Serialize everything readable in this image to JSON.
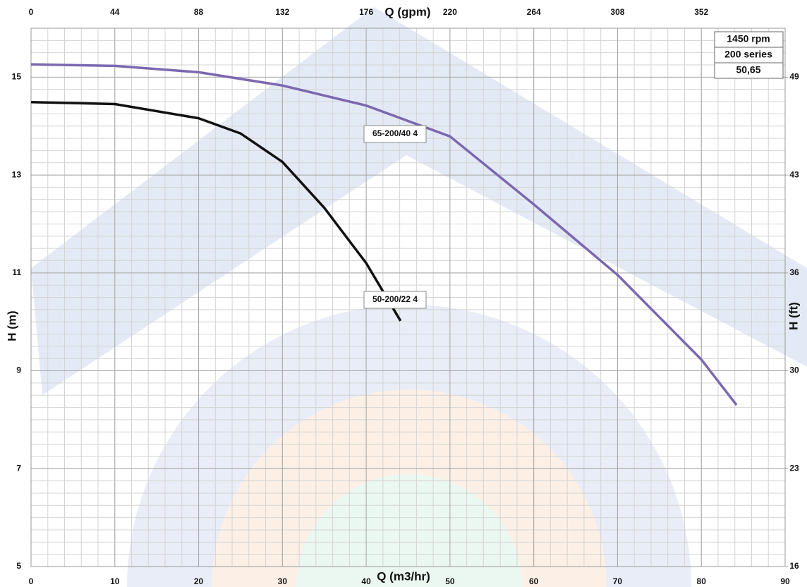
{
  "chart_data": {
    "type": "line",
    "x_label": "Q (m3/hr)",
    "x2_label": "Q (gpm)",
    "y_label": "H (m)",
    "y2_label": "H (ft)",
    "xlim": [
      0,
      90
    ],
    "xticks": [
      0,
      10,
      20,
      30,
      40,
      50,
      60,
      70,
      80,
      90
    ],
    "x2lim": [
      0,
      396
    ],
    "x2ticks": [
      0,
      44,
      88,
      132,
      176,
      220,
      264,
      308,
      352
    ],
    "ylim": [
      5,
      16
    ],
    "yticks": [
      5,
      7,
      9,
      11,
      13,
      15
    ],
    "y2lim": [
      16.4,
      52.5
    ],
    "y2ticks": [
      {
        "value": 16.4,
        "label": "16"
      },
      {
        "value": 22.97,
        "label": "23"
      },
      {
        "value": 29.53,
        "label": "30"
      },
      {
        "value": 36.09,
        "label": "36"
      },
      {
        "value": 42.65,
        "label": "43"
      },
      {
        "value": 49.21,
        "label": "49"
      }
    ],
    "grid": true,
    "minor_grid_step": {
      "x": 2,
      "y": 0.25
    },
    "annotations": [
      "1450 rpm",
      "200 series",
      "50,65"
    ],
    "series": [
      {
        "name": "50-200/22 4",
        "color": "#111111",
        "x": [
          0,
          10,
          20,
          25,
          30,
          35,
          40,
          44.1
        ],
        "values": [
          14.49,
          14.45,
          14.16,
          13.85,
          13.27,
          12.33,
          11.2,
          10.02
        ]
      },
      {
        "name": "65-200/40 4",
        "color": "#7b68b0",
        "x": [
          0,
          10,
          20,
          30,
          40,
          50,
          60,
          70,
          80,
          84.2
        ],
        "values": [
          15.26,
          15.23,
          15.1,
          14.83,
          14.42,
          13.79,
          12.4,
          10.96,
          9.23,
          8.3
        ]
      }
    ]
  }
}
